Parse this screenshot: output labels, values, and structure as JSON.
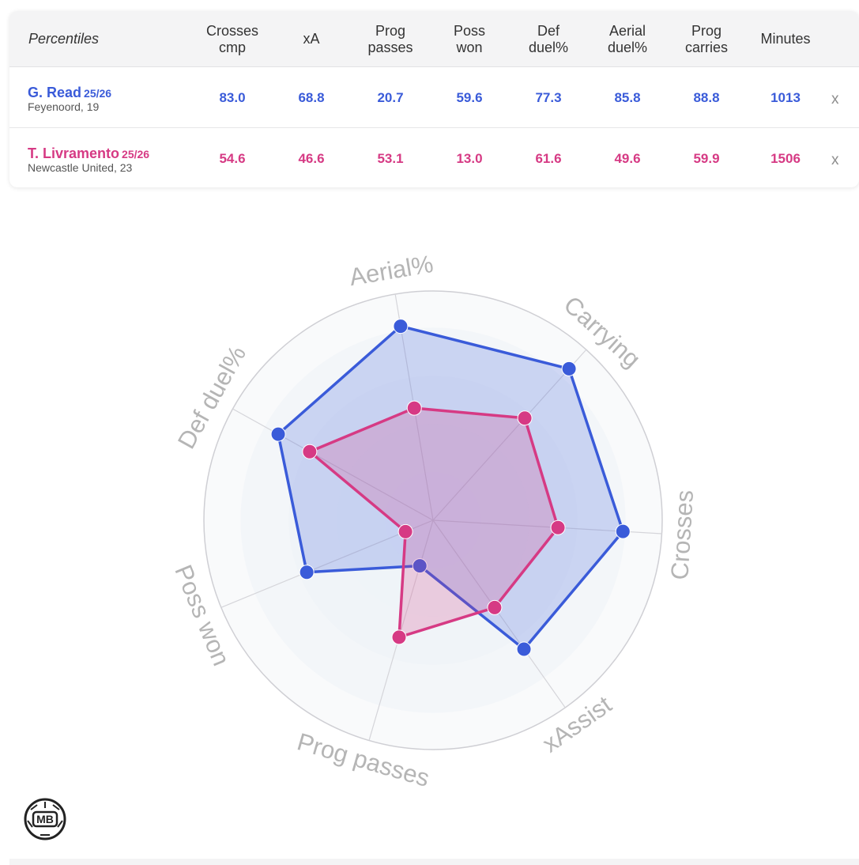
{
  "table": {
    "header_label": "Percentiles",
    "columns": [
      {
        "line1": "Crosses",
        "line2": "cmp"
      },
      {
        "line1": "xA",
        "line2": ""
      },
      {
        "line1": "Prog",
        "line2": "passes"
      },
      {
        "line1": "Poss",
        "line2": "won"
      },
      {
        "line1": "Def",
        "line2": "duel%"
      },
      {
        "line1": "Aerial",
        "line2": "duel%"
      },
      {
        "line1": "Prog",
        "line2": "carries"
      },
      {
        "line1": "Minutes",
        "line2": ""
      }
    ],
    "remove_label": "x",
    "players": [
      {
        "name": "G. Read",
        "season": "25/26",
        "club": "Feyenoord, 19",
        "values": [
          "83.0",
          "68.8",
          "20.7",
          "59.6",
          "77.3",
          "85.8",
          "88.8",
          "1013"
        ]
      },
      {
        "name": "T. Livramento",
        "season": "25/26",
        "club": "Newcastle United, 23",
        "values": [
          "54.6",
          "46.6",
          "53.1",
          "13.0",
          "61.6",
          "49.6",
          "59.9",
          "1506"
        ]
      }
    ]
  },
  "colors": {
    "player1": "#3a5bd9",
    "player2": "#d63a84",
    "axis_label": "#b5b5b5",
    "ring_fill": "#eef3f8",
    "ring_stroke": "#cfcfd4"
  },
  "logo": {
    "text": "MB",
    "icon": "soccer-ball-logo-icon"
  },
  "chart_data": {
    "type": "radar",
    "axes": [
      "Aerial%",
      "Carrying",
      "Crosses",
      "xAssist",
      "Prog passes",
      "Poss won",
      "Def duel%"
    ],
    "range": [
      0,
      100
    ],
    "series": [
      {
        "name": "G. Read",
        "values": [
          85.8,
          88.8,
          83.0,
          68.8,
          20.7,
          59.6,
          77.3
        ]
      },
      {
        "name": "T. Livramento",
        "values": [
          49.6,
          59.9,
          54.6,
          46.6,
          53.1,
          13.0,
          61.6
        ]
      }
    ]
  }
}
